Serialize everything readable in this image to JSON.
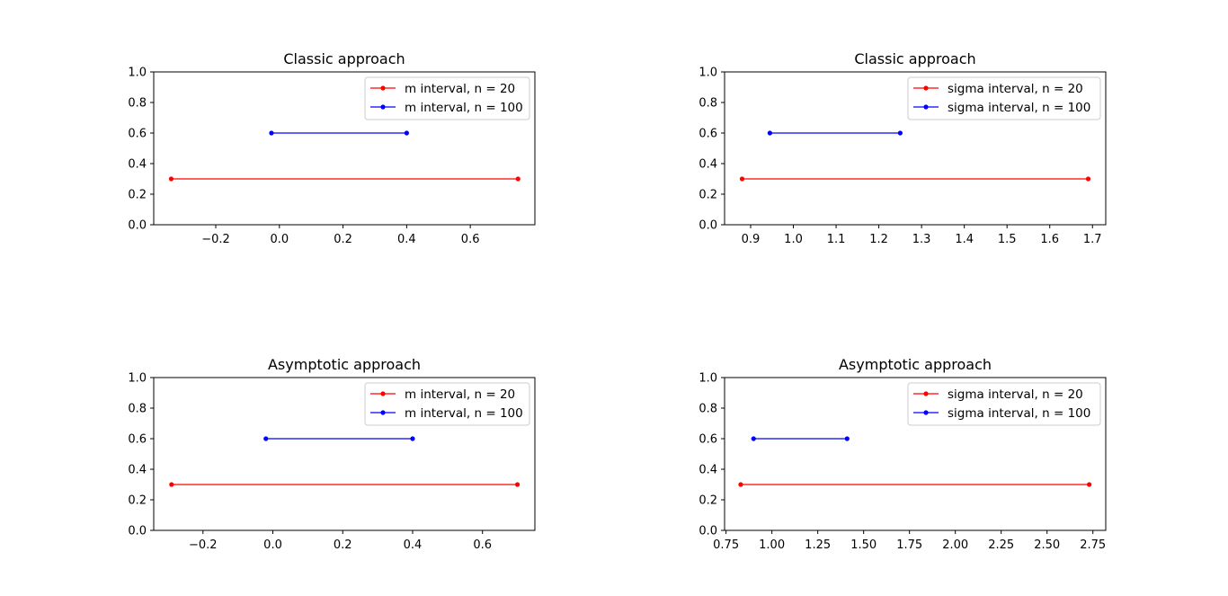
{
  "chart_data": [
    {
      "type": "line",
      "title": "Classic approach",
      "xlim": [
        -0.395,
        0.803
      ],
      "ylim": [
        0,
        1
      ],
      "xticks": [
        -0.2,
        0.0,
        0.2,
        0.4,
        0.6
      ],
      "xtick_labels": [
        "−0.2",
        "0.0",
        "0.2",
        "0.4",
        "0.6"
      ],
      "yticks": [
        0.0,
        0.2,
        0.4,
        0.6,
        0.8,
        1.0
      ],
      "ytick_labels": [
        "0.0",
        "0.2",
        "0.4",
        "0.6",
        "0.8",
        "1.0"
      ],
      "legend_position": "top-right",
      "series": [
        {
          "name": "m interval, n = 20",
          "color": "#ff0000",
          "x": [
            -0.34,
            0.75
          ],
          "y": [
            0.3,
            0.3
          ]
        },
        {
          "name": "m interval, n = 100",
          "color": "#0000ff",
          "x": [
            -0.025,
            0.4
          ],
          "y": [
            0.6,
            0.6
          ]
        }
      ]
    },
    {
      "type": "line",
      "title": "Classic approach",
      "xlim": [
        0.839,
        1.731
      ],
      "ylim": [
        0,
        1
      ],
      "xticks": [
        0.9,
        1.0,
        1.1,
        1.2,
        1.3,
        1.4,
        1.5,
        1.6,
        1.7
      ],
      "xtick_labels": [
        "0.9",
        "1.0",
        "1.1",
        "1.2",
        "1.3",
        "1.4",
        "1.5",
        "1.6",
        "1.7"
      ],
      "yticks": [
        0.0,
        0.2,
        0.4,
        0.6,
        0.8,
        1.0
      ],
      "ytick_labels": [
        "0.0",
        "0.2",
        "0.4",
        "0.6",
        "0.8",
        "1.0"
      ],
      "legend_position": "top-right",
      "series": [
        {
          "name": "sigma interval, n = 20",
          "color": "#ff0000",
          "x": [
            0.88,
            1.69
          ],
          "y": [
            0.3,
            0.3
          ]
        },
        {
          "name": "sigma interval, n = 100",
          "color": "#0000ff",
          "x": [
            0.945,
            1.25
          ],
          "y": [
            0.6,
            0.6
          ]
        }
      ]
    },
    {
      "type": "line",
      "title": "Asymptotic approach",
      "xlim": [
        -0.341,
        0.75
      ],
      "ylim": [
        0,
        1
      ],
      "xticks": [
        -0.2,
        0.0,
        0.2,
        0.4,
        0.6
      ],
      "xtick_labels": [
        "−0.2",
        "0.0",
        "0.2",
        "0.4",
        "0.6"
      ],
      "yticks": [
        0.0,
        0.2,
        0.4,
        0.6,
        0.8,
        1.0
      ],
      "ytick_labels": [
        "0.0",
        "0.2",
        "0.4",
        "0.6",
        "0.8",
        "1.0"
      ],
      "legend_position": "top-right",
      "series": [
        {
          "name": "m interval, n = 20",
          "color": "#ff0000",
          "x": [
            -0.29,
            0.7
          ],
          "y": [
            0.3,
            0.3
          ]
        },
        {
          "name": "m interval, n = 100",
          "color": "#0000ff",
          "x": [
            -0.02,
            0.4
          ],
          "y": [
            0.6,
            0.6
          ]
        }
      ]
    },
    {
      "type": "line",
      "title": "Asymptotic approach",
      "xlim": [
        0.742,
        2.82
      ],
      "ylim": [
        0,
        1
      ],
      "xticks": [
        0.75,
        1.0,
        1.25,
        1.5,
        1.75,
        2.0,
        2.25,
        2.5,
        2.75
      ],
      "xtick_labels": [
        "0.75",
        "1.00",
        "1.25",
        "1.50",
        "1.75",
        "2.00",
        "2.25",
        "2.50",
        "2.75"
      ],
      "yticks": [
        0.0,
        0.2,
        0.4,
        0.6,
        0.8,
        1.0
      ],
      "ytick_labels": [
        "0.0",
        "0.2",
        "0.4",
        "0.6",
        "0.8",
        "1.0"
      ],
      "legend_position": "top-right",
      "series": [
        {
          "name": "sigma interval, n = 20",
          "color": "#ff0000",
          "x": [
            0.83,
            2.73
          ],
          "y": [
            0.3,
            0.3
          ]
        },
        {
          "name": "sigma interval, n = 100",
          "color": "#0000ff",
          "x": [
            0.9,
            1.41
          ],
          "y": [
            0.6,
            0.6
          ]
        }
      ]
    }
  ]
}
